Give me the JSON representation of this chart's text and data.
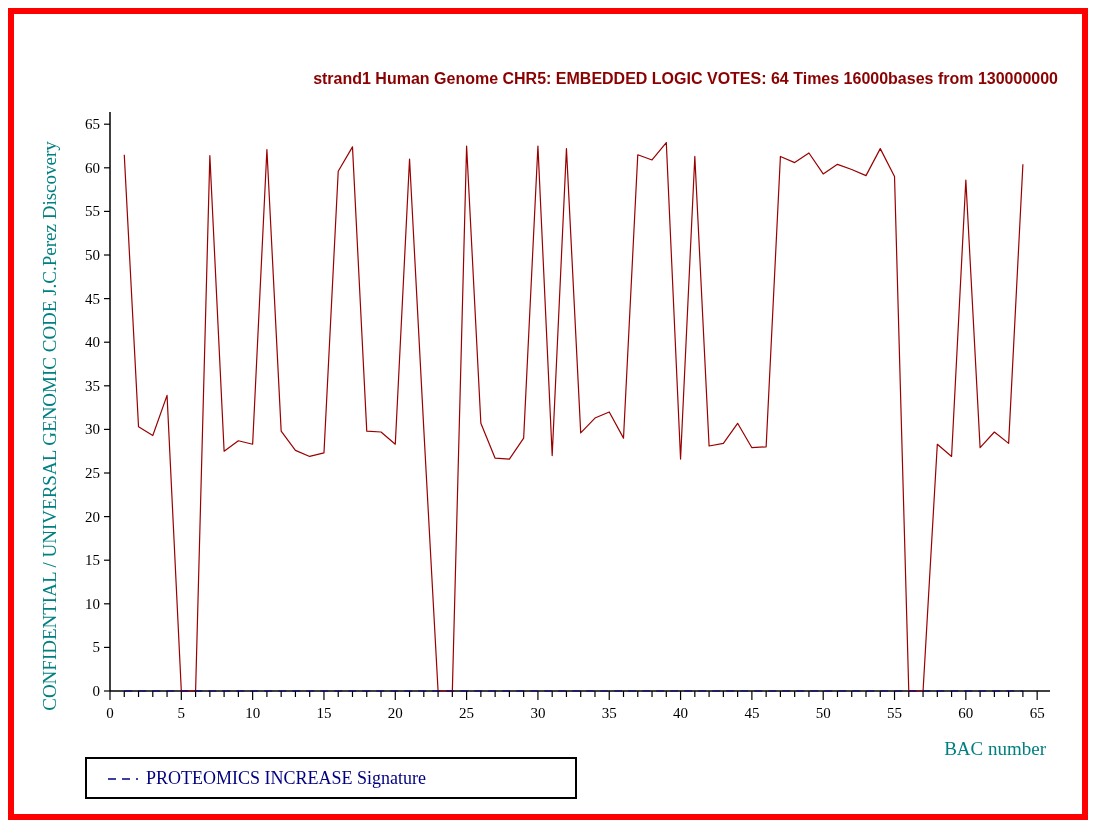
{
  "chart_data": {
    "type": "line",
    "title": "strand1 Human Genome CHR5: EMBEDDED LOGIC VOTES: 64 Times 16000bases from 130000000",
    "xlabel": "BAC number",
    "ylabel": "CONFIDENTIAL / UNIVERSAL GENOMIC CODE J.C.Perez Discovery",
    "x": [
      1,
      2,
      3,
      4,
      5,
      6,
      7,
      8,
      9,
      10,
      11,
      12,
      13,
      14,
      15,
      16,
      17,
      18,
      19,
      20,
      21,
      22,
      23,
      24,
      25,
      26,
      27,
      28,
      29,
      30,
      31,
      32,
      33,
      34,
      35,
      36,
      37,
      38,
      39,
      40,
      41,
      42,
      43,
      44,
      45,
      46,
      47,
      48,
      49,
      50,
      51,
      52,
      53,
      54,
      55,
      56,
      57,
      58,
      59,
      60,
      61,
      62,
      63,
      64
    ],
    "series": [
      {
        "color": "#990000",
        "values": [
          61.5,
          30.3,
          29.3,
          33.9,
          0,
          0,
          61.4,
          27.5,
          28.7,
          28.3,
          62.1,
          29.8,
          27.6,
          26.9,
          27.3,
          59.6,
          62.4,
          29.8,
          29.7,
          28.3,
          61.0,
          30.0,
          0,
          0,
          62.5,
          30.7,
          26.7,
          26.6,
          29.0,
          62.5,
          27.0,
          62.2,
          29.6,
          31.3,
          32.0,
          29.0,
          61.5,
          60.9,
          62.9,
          26.6,
          61.3,
          28.1,
          28.4,
          30.7,
          27.9,
          28.0,
          61.3,
          60.6,
          61.7,
          59.3,
          60.4,
          59.8,
          59.1,
          62.2,
          59.0,
          0,
          0,
          28.3,
          26.9,
          58.6,
          27.9,
          29.7,
          28.4,
          60.4
        ]
      },
      {
        "name": "PROTEOMICS INCREASE Signature",
        "color": "#000080",
        "line_style": "dashed",
        "values": [
          0,
          0,
          0,
          0,
          0,
          0,
          0,
          0,
          0,
          0,
          0,
          0,
          0,
          0,
          0,
          0,
          0,
          0,
          0,
          0,
          0,
          0,
          0,
          0,
          0,
          0,
          0,
          0,
          0,
          0,
          0,
          0,
          0,
          0,
          0,
          0,
          0,
          0,
          0,
          0,
          0,
          0,
          0,
          0,
          0,
          0,
          0,
          0,
          0,
          0,
          0,
          0,
          0,
          0,
          0,
          0,
          0,
          0,
          0,
          0,
          0,
          0,
          0,
          0
        ]
      }
    ],
    "xlim": [
      0,
      65.9
    ],
    "ylim": [
      0,
      66.4
    ],
    "xticks": [
      0,
      {
        "value": 1,
        "label": null
      },
      {
        "value": 2,
        "label": null
      },
      {
        "value": 3,
        "label": null
      },
      {
        "value": 4,
        "label": null
      },
      5,
      {
        "value": 6,
        "label": null
      },
      {
        "value": 7,
        "label": null
      },
      {
        "value": 8,
        "label": null
      },
      {
        "value": 9,
        "label": null
      },
      10,
      {
        "value": 11,
        "label": null
      },
      {
        "value": 12,
        "label": null
      },
      {
        "value": 13,
        "label": null
      },
      {
        "value": 14,
        "label": null
      },
      15,
      {
        "value": 16,
        "label": null
      },
      {
        "value": 17,
        "label": null
      },
      {
        "value": 18,
        "label": null
      },
      {
        "value": 19,
        "label": null
      },
      20,
      {
        "value": 21,
        "label": null
      },
      {
        "value": 22,
        "label": null
      },
      {
        "value": 23,
        "label": null
      },
      {
        "value": 24,
        "label": null
      },
      25,
      {
        "value": 26,
        "label": null
      },
      {
        "value": 27,
        "label": null
      },
      {
        "value": 28,
        "label": null
      },
      {
        "value": 29,
        "label": null
      },
      30,
      {
        "value": 31,
        "label": null
      },
      {
        "value": 32,
        "label": null
      },
      {
        "value": 33,
        "label": null
      },
      {
        "value": 34,
        "label": null
      },
      35,
      {
        "value": 36,
        "label": null
      },
      {
        "value": 37,
        "label": null
      },
      {
        "value": 38,
        "label": null
      },
      {
        "value": 39,
        "label": null
      },
      40,
      {
        "value": 41,
        "label": null
      },
      {
        "value": 42,
        "label": null
      },
      {
        "value": 43,
        "label": null
      },
      {
        "value": 44,
        "label": null
      },
      45,
      {
        "value": 46,
        "label": null
      },
      {
        "value": 47,
        "label": null
      },
      {
        "value": 48,
        "label": null
      },
      {
        "value": 49,
        "label": null
      },
      50,
      {
        "value": 51,
        "label": null
      },
      {
        "value": 52,
        "label": null
      },
      {
        "value": 53,
        "label": null
      },
      {
        "value": 54,
        "label": null
      },
      55,
      {
        "value": 56,
        "label": null
      },
      {
        "value": 57,
        "label": null
      },
      {
        "value": 58,
        "label": null
      },
      {
        "value": 59,
        "label": null
      },
      60,
      {
        "value": 61,
        "label": null
      },
      {
        "value": 62,
        "label": null
      },
      {
        "value": 63,
        "label": null
      },
      {
        "value": 64,
        "label": null
      },
      65
    ],
    "yticks": [
      0,
      5,
      10,
      15,
      20,
      25,
      30,
      35,
      40,
      45,
      50,
      55,
      60,
      65
    ],
    "grid": false,
    "legend": "bottom left",
    "marker": "none",
    "line_style": "solid"
  }
}
